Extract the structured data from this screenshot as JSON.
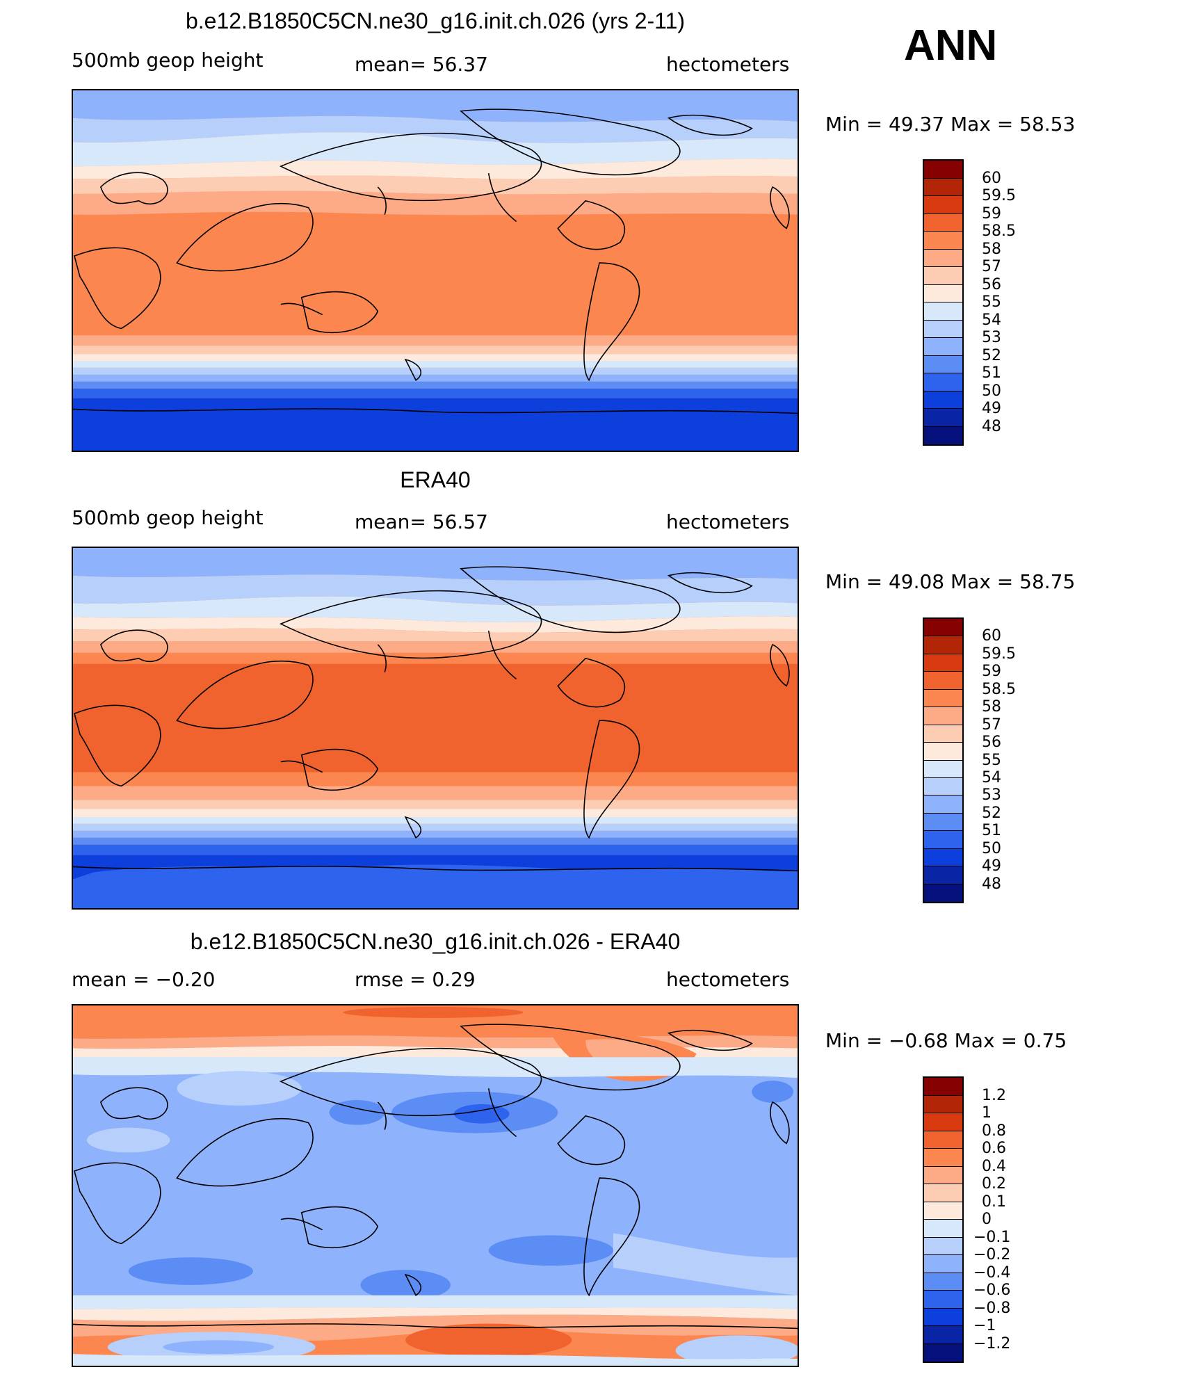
{
  "season": "ANN",
  "chart_data": [
    {
      "type": "heatmap",
      "title": "b.e12.B1850C5CN.ne30_g16.init.ch.026 (yrs 2-11)",
      "left_label": "500mb geop height",
      "center_label": "mean=  56.37",
      "units": "hectometers",
      "min_label": "Min =   49.37 Max =   58.53",
      "mean": 56.37,
      "min": 49.37,
      "max": 58.53,
      "levels": [
        "60",
        "59.5",
        "59",
        "58.5",
        "58",
        "57",
        "56",
        "55",
        "54",
        "53",
        "52",
        "51",
        "50",
        "49",
        "48"
      ],
      "colors": [
        "#850000",
        "#b32507",
        "#d83a10",
        "#f0622e",
        "#fb8650",
        "#fdab86",
        "#fdcdb3",
        "#fdeadd",
        "#d8e8fb",
        "#b6d0fb",
        "#8eb2fb",
        "#5c8df5",
        "#2e63ee",
        "#0c3fdc",
        "#0a24a6",
        "#05107c"
      ]
    },
    {
      "type": "heatmap",
      "title": "ERA40",
      "left_label": "500mb geop height",
      "center_label": "mean=  56.57",
      "units": "hectometers",
      "min_label": "Min =   49.08 Max =   58.75",
      "mean": 56.57,
      "min": 49.08,
      "max": 58.75,
      "levels": [
        "60",
        "59.5",
        "59",
        "58.5",
        "58",
        "57",
        "56",
        "55",
        "54",
        "53",
        "52",
        "51",
        "50",
        "49",
        "48"
      ],
      "colors": [
        "#850000",
        "#b32507",
        "#d83a10",
        "#f0622e",
        "#fb8650",
        "#fdab86",
        "#fdcdb3",
        "#fdeadd",
        "#d8e8fb",
        "#b6d0fb",
        "#8eb2fb",
        "#5c8df5",
        "#2e63ee",
        "#0c3fdc",
        "#0a24a6",
        "#05107c"
      ]
    },
    {
      "type": "heatmap",
      "title": "b.e12.B1850C5CN.ne30_g16.init.ch.026 - ERA40",
      "left_label": "mean =   −0.20",
      "center_label": "rmse =    0.29",
      "units": "hectometers",
      "min_label": "Min =  −0.68 Max =    0.75",
      "mean": -0.2,
      "rmse": 0.29,
      "min": -0.68,
      "max": 0.75,
      "levels": [
        "1.2",
        "1",
        "0.8",
        "0.6",
        "0.4",
        "0.2",
        "0.1",
        "0",
        "−0.1",
        "−0.2",
        "−0.4",
        "−0.6",
        "−0.8",
        "−1",
        "−1.2"
      ],
      "colors": [
        "#850000",
        "#b32507",
        "#d83a10",
        "#f0622e",
        "#fb8650",
        "#fdab86",
        "#fdcdb3",
        "#fdeadd",
        "#d8e8fb",
        "#b6d0fb",
        "#8eb2fb",
        "#5c8df5",
        "#2e63ee",
        "#0c3fdc",
        "#0a24a6",
        "#05107c"
      ]
    }
  ]
}
